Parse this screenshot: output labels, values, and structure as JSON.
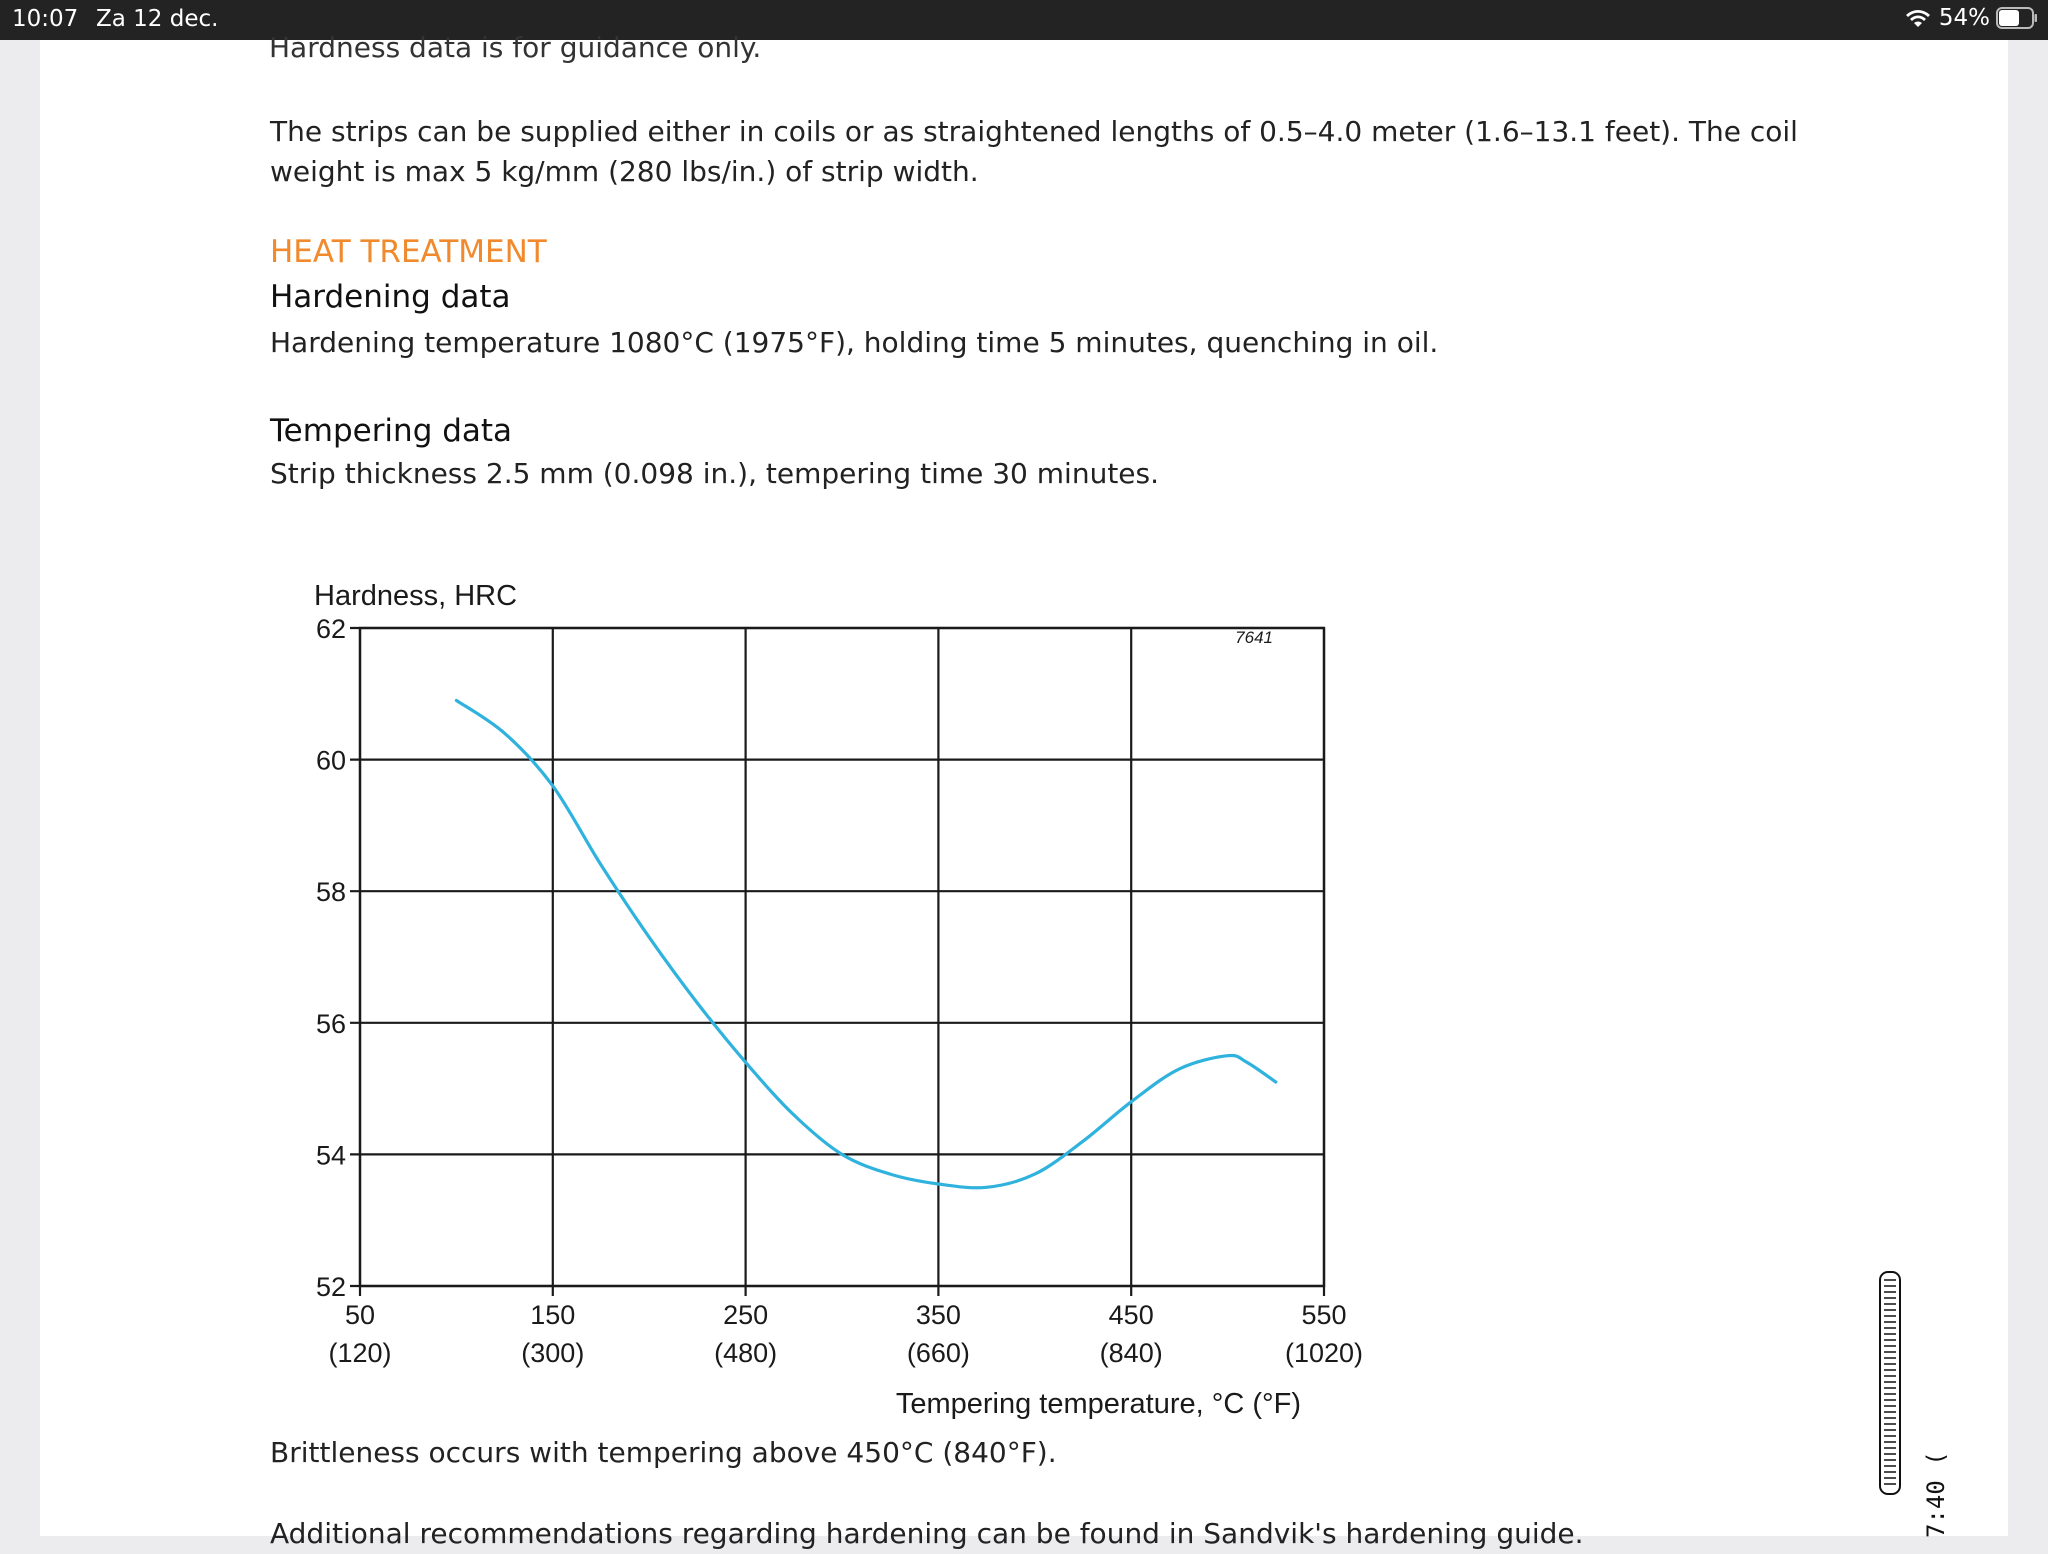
{
  "status_bar": {
    "time": "10:07",
    "date": "Za 12 dec.",
    "battery": "54%"
  },
  "document": {
    "cut_line": "Hardness data is for guidance only.",
    "para1_line1": "The strips can be supplied either in coils or as straightened lengths of 0.5–4.0 meter (1.6–13.1 feet). The coil",
    "para1_line2": "weight is max 5 kg/mm (280 lbs/in.) of strip width.",
    "section_heading": "HEAT TREATMENT",
    "hardening_heading": "Hardening data",
    "hardening_text": "Hardening temperature 1080°C (1975°F), holding time 5 minutes, quenching in oil.",
    "tempering_heading": "Tempering data",
    "tempering_text": "Strip thickness 2.5 mm (0.098 in.), tempering time 30 minutes.",
    "brittleness_text": "Brittleness occurs with tempering above 450°C (840°F).",
    "additional_text": "Additional recommendations regarding hardening can be found in Sandvik's hardening guide."
  },
  "chart_data": {
    "type": "line",
    "ylabel": "Hardness, HRC",
    "xlabel": "Tempering temperature, °C (°F)",
    "figure_id": "7641",
    "xlim": [
      50,
      550
    ],
    "ylim": [
      52,
      62
    ],
    "x_ticks": [
      {
        "c": "50",
        "f": "(120)"
      },
      {
        "c": "150",
        "f": "(300)"
      },
      {
        "c": "250",
        "f": "(480)"
      },
      {
        "c": "350",
        "f": "(660)"
      },
      {
        "c": "450",
        "f": "(840)"
      },
      {
        "c": "550",
        "f": "(1020)"
      }
    ],
    "y_ticks": [
      "62",
      "60",
      "58",
      "56",
      "54",
      "52"
    ],
    "grid": true,
    "series": [
      {
        "color": "#2fb2dd",
        "x": [
          100,
          125,
          150,
          175,
          200,
          225,
          250,
          275,
          300,
          325,
          350,
          375,
          400,
          425,
          450,
          475,
          500,
          510,
          525
        ],
        "y": [
          60.9,
          60.4,
          59.6,
          58.4,
          57.3,
          56.3,
          55.4,
          54.6,
          54.0,
          53.7,
          53.55,
          53.5,
          53.7,
          54.2,
          54.8,
          55.3,
          55.5,
          55.4,
          55.1
        ]
      }
    ]
  },
  "side_gauge": {
    "label": "7:40 ("
  }
}
